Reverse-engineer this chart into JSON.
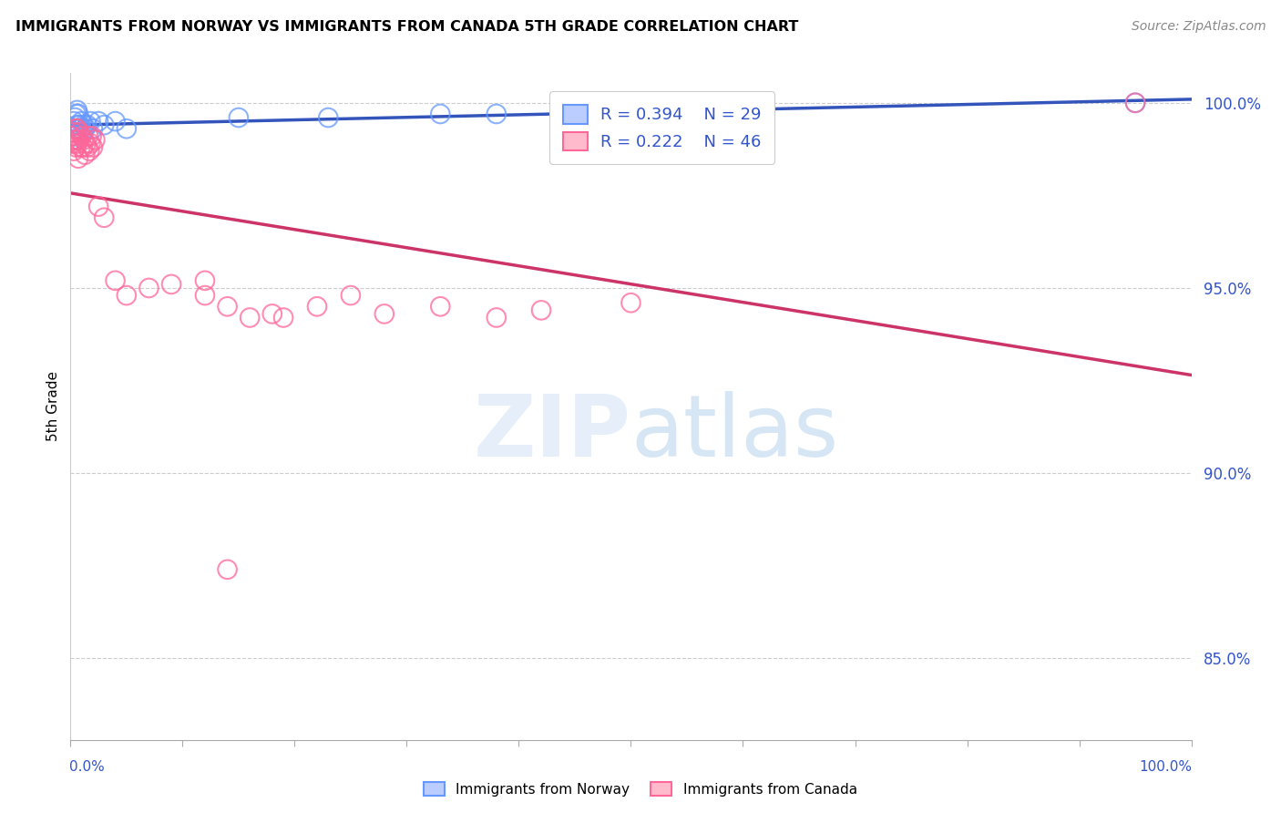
{
  "title": "IMMIGRANTS FROM NORWAY VS IMMIGRANTS FROM CANADA 5TH GRADE CORRELATION CHART",
  "source": "Source: ZipAtlas.com",
  "ylabel": "5th Grade",
  "xlim": [
    0.0,
    1.0
  ],
  "ylim": [
    0.828,
    1.008
  ],
  "ytick_vals": [
    1.0,
    0.95,
    0.9,
    0.85
  ],
  "ytick_labels": [
    "100.0%",
    "95.0%",
    "90.0%",
    "85.0%"
  ],
  "legend1_R": "0.394",
  "legend1_N": "29",
  "legend2_R": "0.222",
  "legend2_N": "46",
  "norway_color": "#6699FF",
  "canada_color": "#FF6699",
  "norway_trend_color": "#3355BB",
  "canada_trend_color": "#CC3366",
  "watermark": "ZIPatlas",
  "norway_x": [
    0.002,
    0.003,
    0.003,
    0.004,
    0.004,
    0.005,
    0.005,
    0.006,
    0.006,
    0.007,
    0.007,
    0.008,
    0.009,
    0.01,
    0.011,
    0.012,
    0.013,
    0.015,
    0.018,
    0.02,
    0.025,
    0.03,
    0.04,
    0.05,
    0.15,
    0.23,
    0.33,
    0.38,
    0.95
  ],
  "norway_y": [
    0.99,
    0.992,
    0.995,
    0.991,
    0.996,
    0.993,
    0.997,
    0.994,
    0.998,
    0.993,
    0.997,
    0.994,
    0.993,
    0.995,
    0.992,
    0.994,
    0.993,
    0.994,
    0.995,
    0.993,
    0.995,
    0.994,
    0.995,
    0.993,
    0.996,
    0.996,
    0.997,
    0.997,
    1.0
  ],
  "canada_x": [
    0.001,
    0.002,
    0.003,
    0.003,
    0.004,
    0.005,
    0.005,
    0.006,
    0.006,
    0.007,
    0.007,
    0.008,
    0.009,
    0.01,
    0.011,
    0.012,
    0.013,
    0.014,
    0.015,
    0.016,
    0.017,
    0.018,
    0.019,
    0.02,
    0.022,
    0.025,
    0.03,
    0.04,
    0.05,
    0.07,
    0.09,
    0.12,
    0.14,
    0.18,
    0.22,
    0.25,
    0.12,
    0.16,
    0.28,
    0.33,
    0.14,
    0.19,
    0.38,
    0.42,
    0.5,
    0.95
  ],
  "canada_y": [
    0.991,
    0.989,
    0.987,
    0.992,
    0.99,
    0.988,
    0.993,
    0.989,
    0.993,
    0.99,
    0.985,
    0.992,
    0.988,
    0.991,
    0.988,
    0.99,
    0.986,
    0.989,
    0.988,
    0.991,
    0.987,
    0.989,
    0.991,
    0.988,
    0.99,
    0.972,
    0.969,
    0.952,
    0.948,
    0.95,
    0.951,
    0.948,
    0.945,
    0.943,
    0.945,
    0.948,
    0.952,
    0.942,
    0.943,
    0.945,
    0.874,
    0.942,
    0.942,
    0.944,
    0.946,
    1.0
  ]
}
